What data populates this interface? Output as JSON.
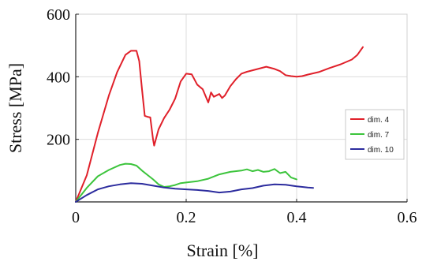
{
  "chart_data": {
    "type": "line",
    "title": "",
    "xlabel": "Strain [%]",
    "ylabel": "Stress [MPa]",
    "xlim": [
      0,
      0.6
    ],
    "ylim": [
      0,
      600
    ],
    "xticks": [
      0,
      0.2,
      0.4,
      0.6
    ],
    "xtick_labels": [
      "0",
      "0.2",
      "0.4",
      "0.6"
    ],
    "yticks": [
      200,
      400,
      600
    ],
    "ytick_labels": [
      "200",
      "400",
      "600"
    ],
    "grid": true,
    "legend_position": "right",
    "series": [
      {
        "name": "dim. 4",
        "color": "#e0202a",
        "points": [
          [
            0,
            0
          ],
          [
            0.02,
            85
          ],
          [
            0.04,
            220
          ],
          [
            0.06,
            340
          ],
          [
            0.075,
            415
          ],
          [
            0.09,
            470
          ],
          [
            0.1,
            483
          ],
          [
            0.11,
            483
          ],
          [
            0.115,
            450
          ],
          [
            0.12,
            360
          ],
          [
            0.125,
            275
          ],
          [
            0.13,
            272
          ],
          [
            0.135,
            270
          ],
          [
            0.14,
            200
          ],
          [
            0.142,
            180
          ],
          [
            0.15,
            232
          ],
          [
            0.16,
            268
          ],
          [
            0.17,
            295
          ],
          [
            0.18,
            330
          ],
          [
            0.19,
            385
          ],
          [
            0.2,
            410
          ],
          [
            0.21,
            408
          ],
          [
            0.22,
            375
          ],
          [
            0.23,
            360
          ],
          [
            0.24,
            318
          ],
          [
            0.245,
            350
          ],
          [
            0.25,
            336
          ],
          [
            0.26,
            345
          ],
          [
            0.265,
            332
          ],
          [
            0.27,
            340
          ],
          [
            0.28,
            370
          ],
          [
            0.29,
            392
          ],
          [
            0.3,
            410
          ],
          [
            0.31,
            416
          ],
          [
            0.33,
            425
          ],
          [
            0.345,
            432
          ],
          [
            0.36,
            425
          ],
          [
            0.37,
            418
          ],
          [
            0.38,
            405
          ],
          [
            0.39,
            402
          ],
          [
            0.4,
            400
          ],
          [
            0.41,
            402
          ],
          [
            0.42,
            407
          ],
          [
            0.44,
            415
          ],
          [
            0.46,
            428
          ],
          [
            0.48,
            440
          ],
          [
            0.5,
            455
          ],
          [
            0.51,
            470
          ],
          [
            0.52,
            495
          ]
        ]
      },
      {
        "name": "dim. 7",
        "color": "#3cc43c",
        "points": [
          [
            0,
            0
          ],
          [
            0.02,
            45
          ],
          [
            0.04,
            82
          ],
          [
            0.06,
            102
          ],
          [
            0.08,
            118
          ],
          [
            0.09,
            122
          ],
          [
            0.1,
            121
          ],
          [
            0.11,
            116
          ],
          [
            0.12,
            100
          ],
          [
            0.13,
            86
          ],
          [
            0.14,
            72
          ],
          [
            0.15,
            56
          ],
          [
            0.16,
            48
          ],
          [
            0.17,
            50
          ],
          [
            0.18,
            54
          ],
          [
            0.19,
            60
          ],
          [
            0.2,
            62
          ],
          [
            0.22,
            66
          ],
          [
            0.24,
            74
          ],
          [
            0.26,
            88
          ],
          [
            0.28,
            96
          ],
          [
            0.3,
            100
          ],
          [
            0.31,
            104
          ],
          [
            0.32,
            98
          ],
          [
            0.33,
            102
          ],
          [
            0.34,
            96
          ],
          [
            0.35,
            98
          ],
          [
            0.36,
            105
          ],
          [
            0.37,
            92
          ],
          [
            0.38,
            96
          ],
          [
            0.39,
            78
          ],
          [
            0.4,
            72
          ]
        ]
      },
      {
        "name": "dim. 10",
        "color": "#2c2c9e",
        "points": [
          [
            0,
            0
          ],
          [
            0.02,
            22
          ],
          [
            0.04,
            40
          ],
          [
            0.06,
            50
          ],
          [
            0.08,
            56
          ],
          [
            0.1,
            60
          ],
          [
            0.12,
            58
          ],
          [
            0.14,
            52
          ],
          [
            0.16,
            46
          ],
          [
            0.18,
            42
          ],
          [
            0.2,
            40
          ],
          [
            0.22,
            38
          ],
          [
            0.24,
            35
          ],
          [
            0.26,
            30
          ],
          [
            0.28,
            33
          ],
          [
            0.3,
            40
          ],
          [
            0.32,
            44
          ],
          [
            0.34,
            52
          ],
          [
            0.36,
            56
          ],
          [
            0.38,
            55
          ],
          [
            0.4,
            50
          ],
          [
            0.42,
            46
          ],
          [
            0.43,
            45
          ]
        ]
      }
    ]
  }
}
